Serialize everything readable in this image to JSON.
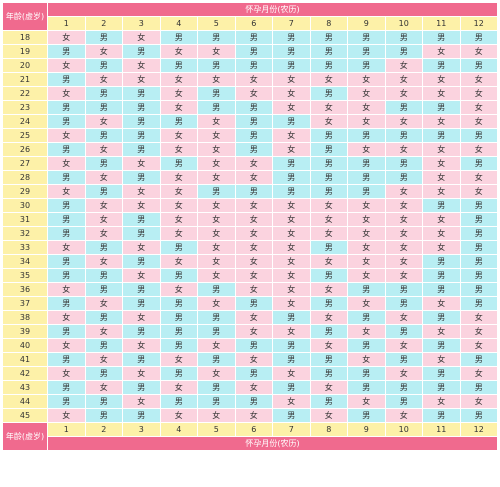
{
  "header": {
    "corner": "年龄(虚岁)",
    "title": "怀孕月份(农历)",
    "months": [
      1,
      2,
      3,
      4,
      5,
      6,
      7,
      8,
      9,
      10,
      11,
      12
    ]
  },
  "cell_colors": {
    "女": "#fbd3df",
    "男": "#b8eef3"
  },
  "rows": [
    {
      "age": 18,
      "cells": [
        "女",
        "男",
        "女",
        "男",
        "男",
        "男",
        "男",
        "男",
        "男",
        "男",
        "男",
        "男"
      ]
    },
    {
      "age": 19,
      "cells": [
        "男",
        "女",
        "男",
        "女",
        "女",
        "男",
        "男",
        "男",
        "男",
        "男",
        "女",
        "女"
      ]
    },
    {
      "age": 20,
      "cells": [
        "女",
        "男",
        "女",
        "男",
        "男",
        "男",
        "男",
        "男",
        "男",
        "女",
        "男",
        "男"
      ]
    },
    {
      "age": 21,
      "cells": [
        "男",
        "女",
        "女",
        "女",
        "女",
        "女",
        "女",
        "女",
        "女",
        "女",
        "女",
        "女"
      ]
    },
    {
      "age": 22,
      "cells": [
        "女",
        "男",
        "男",
        "女",
        "男",
        "女",
        "女",
        "男",
        "女",
        "女",
        "女",
        "女"
      ]
    },
    {
      "age": 23,
      "cells": [
        "男",
        "男",
        "男",
        "女",
        "男",
        "男",
        "女",
        "女",
        "女",
        "男",
        "男",
        "女"
      ]
    },
    {
      "age": 24,
      "cells": [
        "男",
        "女",
        "男",
        "男",
        "女",
        "男",
        "男",
        "女",
        "女",
        "女",
        "女",
        "女"
      ]
    },
    {
      "age": 25,
      "cells": [
        "女",
        "男",
        "男",
        "女",
        "女",
        "男",
        "女",
        "男",
        "男",
        "男",
        "男",
        "男"
      ]
    },
    {
      "age": 26,
      "cells": [
        "男",
        "女",
        "男",
        "女",
        "女",
        "男",
        "女",
        "男",
        "女",
        "女",
        "女",
        "女"
      ]
    },
    {
      "age": 27,
      "cells": [
        "女",
        "男",
        "女",
        "男",
        "女",
        "女",
        "男",
        "男",
        "男",
        "男",
        "女",
        "男"
      ]
    },
    {
      "age": 28,
      "cells": [
        "男",
        "女",
        "男",
        "女",
        "女",
        "女",
        "男",
        "男",
        "男",
        "男",
        "女",
        "女"
      ]
    },
    {
      "age": 29,
      "cells": [
        "女",
        "男",
        "女",
        "女",
        "男",
        "男",
        "男",
        "男",
        "男",
        "女",
        "女",
        "女"
      ]
    },
    {
      "age": 30,
      "cells": [
        "男",
        "女",
        "女",
        "女",
        "女",
        "女",
        "女",
        "女",
        "女",
        "女",
        "男",
        "男"
      ]
    },
    {
      "age": 31,
      "cells": [
        "男",
        "女",
        "男",
        "女",
        "女",
        "女",
        "女",
        "女",
        "女",
        "女",
        "女",
        "男"
      ]
    },
    {
      "age": 32,
      "cells": [
        "男",
        "女",
        "男",
        "女",
        "女",
        "女",
        "女",
        "女",
        "女",
        "女",
        "女",
        "男"
      ]
    },
    {
      "age": 33,
      "cells": [
        "女",
        "男",
        "女",
        "男",
        "女",
        "女",
        "女",
        "男",
        "女",
        "女",
        "女",
        "男"
      ]
    },
    {
      "age": 34,
      "cells": [
        "男",
        "女",
        "男",
        "女",
        "女",
        "女",
        "女",
        "女",
        "女",
        "女",
        "男",
        "男"
      ]
    },
    {
      "age": 35,
      "cells": [
        "男",
        "男",
        "女",
        "男",
        "女",
        "女",
        "女",
        "男",
        "女",
        "女",
        "男",
        "男"
      ]
    },
    {
      "age": 36,
      "cells": [
        "女",
        "男",
        "男",
        "女",
        "男",
        "女",
        "女",
        "女",
        "男",
        "男",
        "男",
        "男"
      ]
    },
    {
      "age": 37,
      "cells": [
        "男",
        "女",
        "男",
        "男",
        "女",
        "男",
        "女",
        "男",
        "女",
        "男",
        "女",
        "男"
      ]
    },
    {
      "age": 38,
      "cells": [
        "女",
        "男",
        "女",
        "男",
        "男",
        "女",
        "男",
        "女",
        "男",
        "女",
        "男",
        "女"
      ]
    },
    {
      "age": 39,
      "cells": [
        "男",
        "女",
        "男",
        "男",
        "男",
        "女",
        "女",
        "男",
        "女",
        "男",
        "女",
        "女"
      ]
    },
    {
      "age": 40,
      "cells": [
        "女",
        "男",
        "女",
        "男",
        "女",
        "男",
        "男",
        "女",
        "男",
        "女",
        "男",
        "女"
      ]
    },
    {
      "age": 41,
      "cells": [
        "男",
        "女",
        "男",
        "女",
        "男",
        "女",
        "男",
        "男",
        "女",
        "男",
        "女",
        "男"
      ]
    },
    {
      "age": 42,
      "cells": [
        "女",
        "男",
        "女",
        "男",
        "女",
        "男",
        "女",
        "男",
        "男",
        "女",
        "男",
        "女"
      ]
    },
    {
      "age": 43,
      "cells": [
        "男",
        "女",
        "男",
        "女",
        "男",
        "女",
        "男",
        "女",
        "男",
        "男",
        "男",
        "男"
      ]
    },
    {
      "age": 44,
      "cells": [
        "男",
        "男",
        "女",
        "男",
        "男",
        "男",
        "女",
        "男",
        "女",
        "男",
        "女",
        "女"
      ]
    },
    {
      "age": 45,
      "cells": [
        "女",
        "男",
        "男",
        "女",
        "女",
        "女",
        "男",
        "女",
        "男",
        "女",
        "男",
        "男"
      ]
    }
  ],
  "footer": {
    "corner": "年龄(虚岁)",
    "title": "怀孕月份(农历)",
    "months": [
      1,
      2,
      3,
      4,
      5,
      6,
      7,
      8,
      9,
      10,
      11,
      12
    ]
  }
}
